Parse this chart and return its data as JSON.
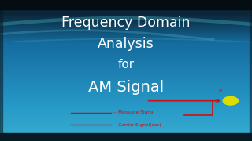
{
  "title_lines": [
    "Frequency Domain",
    "Analysis",
    "for",
    "AM Signal"
  ],
  "title_color": "#ffffff",
  "bg_dark": "#0a2a38",
  "bg_mid_dark": "#0d4a6a",
  "bg_mid": "#1a7aaa",
  "bg_light": "#2a9acc",
  "bg_bottom": "#3aadcf",
  "legend_line1": "-- Message Signal",
  "legend_line2": "-- Carrier Signal(cos)",
  "legend_color": "#cc1111",
  "circuit_color": "#cc1111",
  "dot_color": "#dddd00",
  "dot_edge_color": "#999900",
  "arrow_label": "R",
  "black_bar_color": "#050d12",
  "wave_color": "#3ab8d8"
}
